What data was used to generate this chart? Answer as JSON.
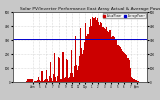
{
  "title": "Solar PV/Inverter Performance East Array Actual & Average Power Output",
  "title_fontsize": 3.2,
  "background_color": "#c8c8c8",
  "plot_bg_color": "#ffffff",
  "grid_color": "#bbbbbb",
  "bar_color": "#cc0000",
  "avg_line_color": "#0000cc",
  "avg_line_value": 0.62,
  "ylim": [
    0,
    1.0
  ],
  "num_points": 200,
  "legend_labels": [
    "ActualPower",
    "AveragePower"
  ],
  "legend_colors": [
    "#cc0000",
    "#0000cc"
  ],
  "y_tick_vals": [
    0.0,
    0.2,
    0.4,
    0.6,
    0.8,
    1.0
  ],
  "y_tick_labels": [
    "0",
    "100",
    "200",
    "300",
    "400",
    "500"
  ],
  "x_tick_labels": [
    "4am",
    "5",
    "6",
    "7",
    "8",
    "9",
    "10",
    "11",
    "12p",
    "1",
    "2",
    "3",
    "4",
    "5",
    "6",
    "7",
    "8pm"
  ],
  "figsize": [
    1.6,
    1.0
  ],
  "dpi": 100
}
